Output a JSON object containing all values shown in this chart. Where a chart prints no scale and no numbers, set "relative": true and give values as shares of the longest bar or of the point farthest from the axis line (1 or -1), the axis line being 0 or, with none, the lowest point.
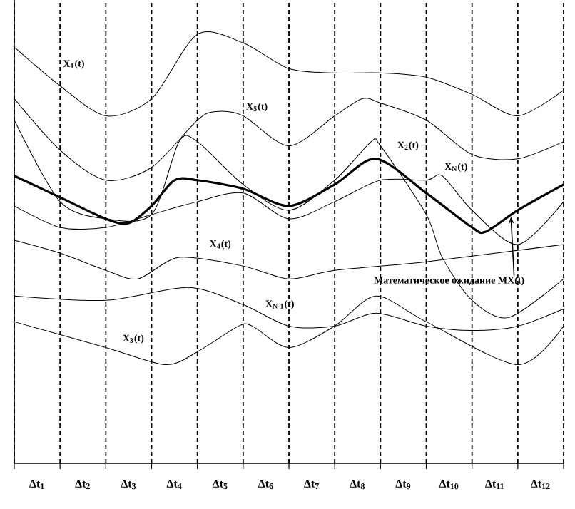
{
  "chart_data": {
    "type": "line",
    "relative": true,
    "grid": true,
    "marker": "none",
    "line_style": "solid",
    "xlim": [
      0,
      12
    ],
    "xticks": [
      {
        "value": 0,
        "label": null
      },
      {
        "value": 1,
        "label": null
      },
      {
        "value": 2,
        "label": null
      },
      {
        "value": 3,
        "label": null
      },
      {
        "value": 4,
        "label": null
      },
      {
        "value": 5,
        "label": null
      },
      {
        "value": 6,
        "label": null
      },
      {
        "value": 7,
        "label": null
      },
      {
        "value": 8,
        "label": null
      },
      {
        "value": 9,
        "label": null
      },
      {
        "value": 10,
        "label": null
      },
      {
        "value": 11,
        "label": null
      },
      {
        "value": 12,
        "label": null
      },
      {
        "value": 0.5,
        "label": "Δt$_{1}$"
      },
      {
        "value": 1.5,
        "label": "Δt$_{2}$"
      },
      {
        "value": 2.5,
        "label": "Δt$_{3}$"
      },
      {
        "value": 3.5,
        "label": "Δt$_{4}$"
      },
      {
        "value": 4.5,
        "label": "Δt$_{5}$"
      },
      {
        "value": 5.5,
        "label": "Δt$_{6}$"
      },
      {
        "value": 6.5,
        "label": "Δt$_{7}$"
      },
      {
        "value": 7.5,
        "label": "Δt$_{8}$"
      },
      {
        "value": 8.5,
        "label": "Δt$_{9}$"
      },
      {
        "value": 9.5,
        "label": "Δt$_{10}$"
      },
      {
        "value": 10.5,
        "label": "Δt$_{11}$"
      },
      {
        "value": 11.5,
        "label": "Δt$_{12}$"
      }
    ],
    "series": [
      {
        "name": "X$_{1}$(t)",
        "color": "#000000",
        "x": [
          0,
          1,
          2,
          3,
          4,
          5,
          6,
          7,
          8,
          9,
          10,
          11,
          12
        ],
        "values": [
          0.97,
          0.88,
          0.81,
          0.85,
          1.0,
          0.98,
          0.92,
          0.91,
          0.91,
          0.9,
          0.86,
          0.81,
          0.87
        ]
      },
      {
        "name": "X$_{5}$(t)",
        "color": "#000000",
        "x": [
          0,
          1,
          2,
          3,
          4,
          4.4,
          5,
          6,
          7,
          7.6,
          8,
          9,
          10,
          11,
          12
        ],
        "values": [
          0.85,
          0.73,
          0.66,
          0.69,
          0.8,
          0.82,
          0.81,
          0.74,
          0.81,
          0.85,
          0.84,
          0.8,
          0.72,
          0.71,
          0.75
        ]
      },
      {
        "name": "X$_{2}$(t)",
        "color": "#000000",
        "x": [
          0,
          1,
          2,
          3,
          3.6,
          4,
          5,
          6,
          7,
          7.8,
          8,
          9,
          9.35,
          10,
          10.8,
          12
        ],
        "values": [
          0.8,
          0.61,
          0.57,
          0.58,
          0.75,
          0.75,
          0.65,
          0.59,
          0.66,
          0.75,
          0.74,
          0.58,
          0.48,
          0.38,
          0.34,
          0.43
        ]
      },
      {
        "name": "X$_{N}$(t)",
        "color": "#000000",
        "x": [
          0,
          1,
          2,
          3,
          4,
          5,
          6,
          7,
          8,
          9,
          9.35,
          10,
          11,
          12
        ],
        "values": [
          0.6,
          0.55,
          0.55,
          0.58,
          0.61,
          0.63,
          0.57,
          0.61,
          0.66,
          0.66,
          0.67,
          0.59,
          0.51,
          0.61
        ]
      },
      {
        "name": "Математическое ожидание MX(t)",
        "color": "#000000",
        "x": [
          0,
          1,
          2,
          2.5,
          3,
          3.5,
          4,
          5,
          6,
          7,
          7.9,
          9,
          10,
          10.3,
          11,
          12
        ],
        "values": [
          0.67,
          0.62,
          0.57,
          0.56,
          0.6,
          0.66,
          0.66,
          0.64,
          0.6,
          0.65,
          0.71,
          0.63,
          0.55,
          0.54,
          0.59,
          0.65
        ]
      },
      {
        "name": "X$_{4}$(t)",
        "color": "#000000",
        "x": [
          0,
          1,
          2,
          2.7,
          3.6,
          5,
          6,
          7,
          9,
          12
        ],
        "values": [
          0.52,
          0.49,
          0.45,
          0.43,
          0.48,
          0.46,
          0.43,
          0.45,
          0.47,
          0.51
        ]
      },
      {
        "name": "X$_{N-1}$(t)",
        "color": "#000000",
        "x": [
          0,
          2,
          3.8,
          5,
          6,
          7,
          7.9,
          9,
          10,
          11,
          12
        ],
        "values": [
          0.39,
          0.38,
          0.41,
          0.37,
          0.32,
          0.32,
          0.35,
          0.32,
          0.31,
          0.32,
          0.36
        ]
      },
      {
        "name": "X$_{3}$(t)",
        "color": "#000000",
        "x": [
          0,
          2,
          3.3,
          4,
          4.9,
          5.2,
          6,
          7,
          7.9,
          9,
          11,
          12
        ],
        "values": [
          0.33,
          0.27,
          0.23,
          0.26,
          0.32,
          0.32,
          0.27,
          0.32,
          0.39,
          0.33,
          0.23,
          0.32
        ]
      }
    ]
  }
}
